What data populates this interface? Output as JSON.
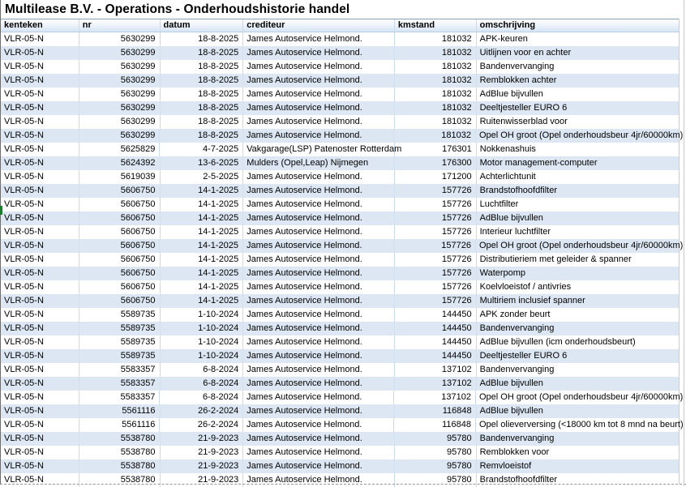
{
  "title": "Multilease B.V. - Operations - Onderhoudshistorie handel",
  "table": {
    "columns": [
      {
        "key": "kenteken",
        "label": "kenteken"
      },
      {
        "key": "nr",
        "label": "nr"
      },
      {
        "key": "datum",
        "label": "datum"
      },
      {
        "key": "crediteur",
        "label": "crediteur"
      },
      {
        "key": "kmstand",
        "label": "kmstand"
      },
      {
        "key": "omschrijving",
        "label": "omschrijving"
      }
    ],
    "rows": [
      [
        "VLR-05-N",
        "5630299",
        "18-8-2025",
        "James Autoservice Helmond.",
        "181032",
        "APK-keuren"
      ],
      [
        "VLR-05-N",
        "5630299",
        "18-8-2025",
        "James Autoservice Helmond.",
        "181032",
        "Uitlijnen voor en achter"
      ],
      [
        "VLR-05-N",
        "5630299",
        "18-8-2025",
        "James Autoservice Helmond.",
        "181032",
        "Bandenvervanging"
      ],
      [
        "VLR-05-N",
        "5630299",
        "18-8-2025",
        "James Autoservice Helmond.",
        "181032",
        "Remblokken achter"
      ],
      [
        "VLR-05-N",
        "5630299",
        "18-8-2025",
        "James Autoservice Helmond.",
        "181032",
        "AdBlue bijvullen"
      ],
      [
        "VLR-05-N",
        "5630299",
        "18-8-2025",
        "James Autoservice Helmond.",
        "181032",
        "Deeltjesteller EURO 6"
      ],
      [
        "VLR-05-N",
        "5630299",
        "18-8-2025",
        "James Autoservice Helmond.",
        "181032",
        "Ruitenwisserblad voor"
      ],
      [
        "VLR-05-N",
        "5630299",
        "18-8-2025",
        "James Autoservice Helmond.",
        "181032",
        "Opel OH groot (Opel onderhoudsbeur 4jr/60000km)"
      ],
      [
        "VLR-05-N",
        "5625829",
        "4-7-2025",
        "Vakgarage(LSP) Patenoster Rotterdam",
        "176301",
        "Nokkenashuis"
      ],
      [
        "VLR-05-N",
        "5624392",
        "13-6-2025",
        "Mulders (Opel,Leap) Nijmegen",
        "176300",
        "Motor management-computer"
      ],
      [
        "VLR-05-N",
        "5619039",
        "2-5-2025",
        "James Autoservice Helmond.",
        "171200",
        "Achterlichtunit"
      ],
      [
        "VLR-05-N",
        "5606750",
        "14-1-2025",
        "James Autoservice Helmond.",
        "157726",
        "Brandstofhoofdfilter"
      ],
      [
        "VLR-05-N",
        "5606750",
        "14-1-2025",
        "James Autoservice Helmond.",
        "157726",
        "Luchtfilter"
      ],
      [
        "VLR-05-N",
        "5606750",
        "14-1-2025",
        "James Autoservice Helmond.",
        "157726",
        "AdBlue bijvullen"
      ],
      [
        "VLR-05-N",
        "5606750",
        "14-1-2025",
        "James Autoservice Helmond.",
        "157726",
        "Interieur luchtfilter"
      ],
      [
        "VLR-05-N",
        "5606750",
        "14-1-2025",
        "James Autoservice Helmond.",
        "157726",
        "Opel OH groot (Opel onderhoudsbeur 4jr/60000km)"
      ],
      [
        "VLR-05-N",
        "5606750",
        "14-1-2025",
        "James Autoservice Helmond.",
        "157726",
        "Distributieriem met geleider & spanner"
      ],
      [
        "VLR-05-N",
        "5606750",
        "14-1-2025",
        "James Autoservice Helmond.",
        "157726",
        "Waterpomp"
      ],
      [
        "VLR-05-N",
        "5606750",
        "14-1-2025",
        "James Autoservice Helmond.",
        "157726",
        "Koelvloeistof / antivries"
      ],
      [
        "VLR-05-N",
        "5606750",
        "14-1-2025",
        "James Autoservice Helmond.",
        "157726",
        "Multiriem inclusief spanner"
      ],
      [
        "VLR-05-N",
        "5589735",
        "1-10-2024",
        "James Autoservice Helmond.",
        "144450",
        "APK zonder beurt"
      ],
      [
        "VLR-05-N",
        "5589735",
        "1-10-2024",
        "James Autoservice Helmond.",
        "144450",
        "Bandenvervanging"
      ],
      [
        "VLR-05-N",
        "5589735",
        "1-10-2024",
        "James Autoservice Helmond.",
        "144450",
        "AdBlue bijvullen (icm onderhoudsbeurt)"
      ],
      [
        "VLR-05-N",
        "5589735",
        "1-10-2024",
        "James Autoservice Helmond.",
        "144450",
        "Deeltjesteller EURO 6"
      ],
      [
        "VLR-05-N",
        "5583357",
        "6-8-2024",
        "James Autoservice Helmond.",
        "137102",
        "Bandenvervanging"
      ],
      [
        "VLR-05-N",
        "5583357",
        "6-8-2024",
        "James Autoservice Helmond.",
        "137102",
        "AdBlue bijvullen"
      ],
      [
        "VLR-05-N",
        "5583357",
        "6-8-2024",
        "James Autoservice Helmond.",
        "137102",
        "Opel OH groot (Opel onderhoudsbeur 4jr/60000km)"
      ],
      [
        "VLR-05-N",
        "5561116",
        "26-2-2024",
        "James Autoservice Helmond.",
        "116848",
        "AdBlue bijvullen"
      ],
      [
        "VLR-05-N",
        "5561116",
        "26-2-2024",
        "James Autoservice Helmond.",
        "116848",
        "Opel olieverversing (<18000 km tot 8 mnd na beurt)"
      ],
      [
        "VLR-05-N",
        "5538780",
        "21-9-2023",
        "James Autoservice Helmond.",
        "95780",
        "Bandenvervanging"
      ],
      [
        "VLR-05-N",
        "5538780",
        "21-9-2023",
        "James Autoservice Helmond.",
        "95780",
        "Remblokken voor"
      ],
      [
        "VLR-05-N",
        "5538780",
        "21-9-2023",
        "James Autoservice Helmond.",
        "95780",
        "Remvloeistof"
      ],
      [
        "VLR-05-N",
        "5538780",
        "21-9-2023",
        "James Autoservice Helmond.",
        "95780",
        "Brandstofhoofdfilter"
      ]
    ]
  },
  "colors": {
    "stripe": "#dce7f3",
    "gridline": "#cbd9ea",
    "header_gradient_bottom": "#d5e4f4",
    "row_indicator_green": "#1d7a33",
    "page_break_dash": "#969696"
  }
}
